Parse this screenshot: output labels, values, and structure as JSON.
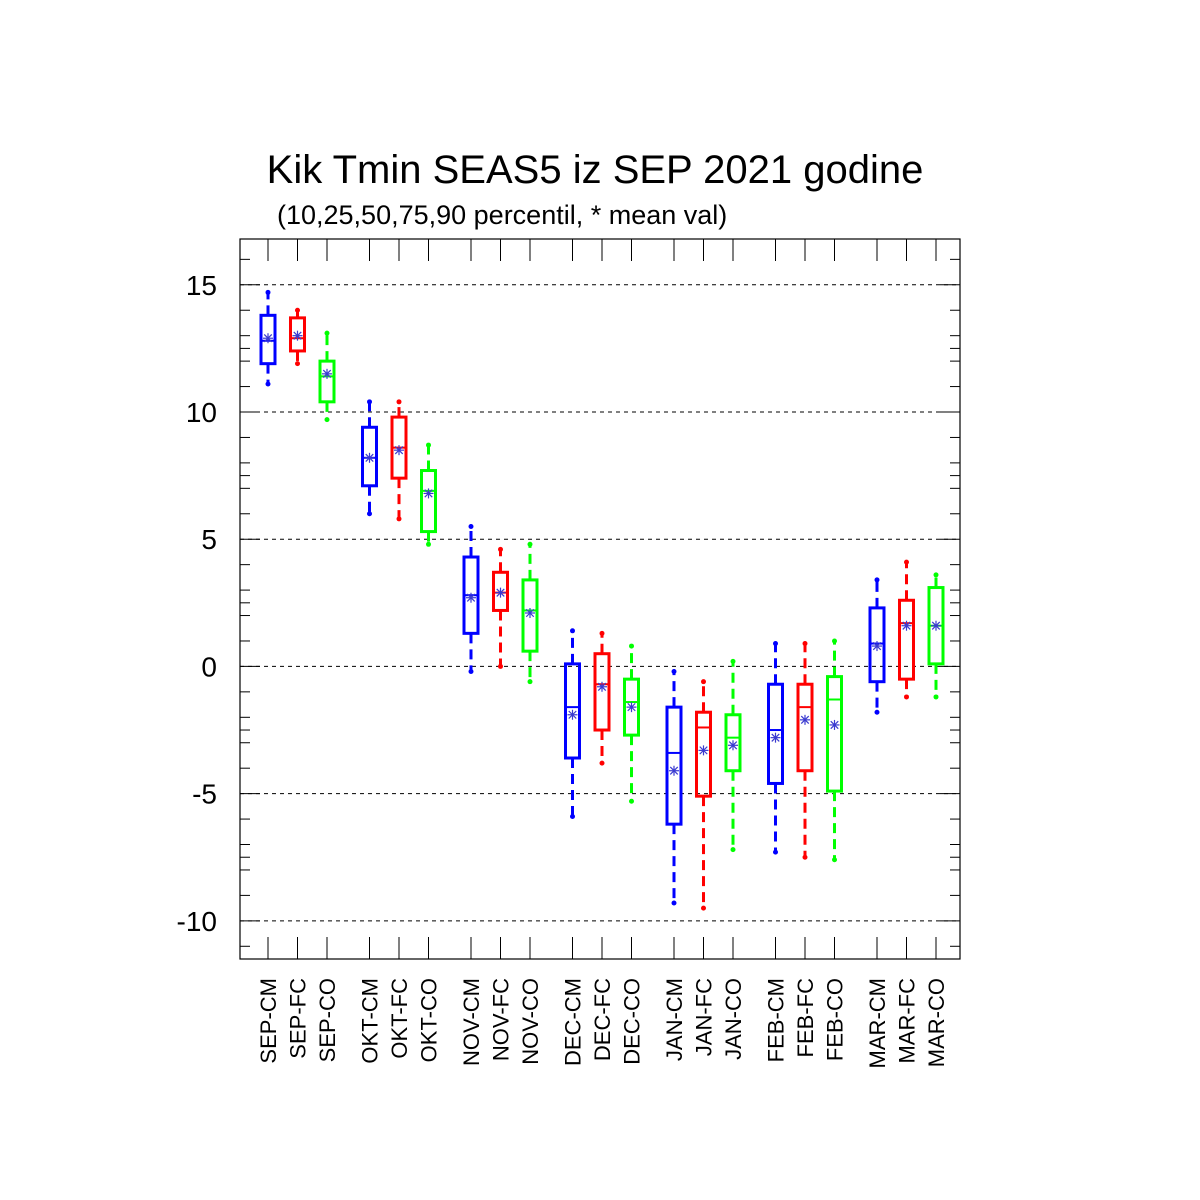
{
  "chart_data": {
    "type": "box",
    "title": "Kik Tmin SEAS5 iz SEP 2021 godine",
    "subtitle": "(10,25,50,75,90 percentil, * mean val)",
    "xlabel": "",
    "ylabel": "",
    "ylim": [
      -11.5,
      16.8
    ],
    "yticks": [
      "15",
      "10",
      "5",
      "0",
      "-5",
      "-10"
    ],
    "ytick_values": [
      15,
      10,
      5,
      0,
      -5,
      -10
    ],
    "grid": "horizontal dashed at major ticks",
    "colors": {
      "CM": "#0000ff",
      "FC": "#ff0000",
      "CO": "#00ff00",
      "mean_marker": "#3b3bd0"
    },
    "boxes": [
      {
        "label": "SEP-CM",
        "group": "CM",
        "p10": 11.1,
        "p25": 11.9,
        "p50": 12.8,
        "p75": 13.8,
        "p90": 14.7,
        "mean": 12.9
      },
      {
        "label": "SEP-FC",
        "group": "FC",
        "p10": 11.9,
        "p25": 12.4,
        "p50": 12.9,
        "p75": 13.7,
        "p90": 14.0,
        "mean": 13.0
      },
      {
        "label": "SEP-CO",
        "group": "CO",
        "p10": 9.7,
        "p25": 10.4,
        "p50": 11.4,
        "p75": 12.0,
        "p90": 13.1,
        "mean": 11.5
      },
      {
        "label": "OKT-CM",
        "group": "CM",
        "p10": 6.0,
        "p25": 7.1,
        "p50": 8.2,
        "p75": 9.4,
        "p90": 10.4,
        "mean": 8.2
      },
      {
        "label": "OKT-FC",
        "group": "FC",
        "p10": 5.8,
        "p25": 7.4,
        "p50": 8.6,
        "p75": 9.8,
        "p90": 10.4,
        "mean": 8.5
      },
      {
        "label": "OKT-CO",
        "group": "CO",
        "p10": 4.8,
        "p25": 5.3,
        "p50": 6.9,
        "p75": 7.7,
        "p90": 8.7,
        "mean": 6.8
      },
      {
        "label": "NOV-CM",
        "group": "CM",
        "p10": -0.2,
        "p25": 1.3,
        "p50": 2.8,
        "p75": 4.3,
        "p90": 5.5,
        "mean": 2.7
      },
      {
        "label": "NOV-FC",
        "group": "FC",
        "p10": 0.0,
        "p25": 2.2,
        "p50": 2.9,
        "p75": 3.7,
        "p90": 4.6,
        "mean": 2.9
      },
      {
        "label": "NOV-CO",
        "group": "CO",
        "p10": -0.6,
        "p25": 0.6,
        "p50": 2.2,
        "p75": 3.4,
        "p90": 4.8,
        "mean": 2.1
      },
      {
        "label": "DEC-CM",
        "group": "CM",
        "p10": -5.9,
        "p25": -3.6,
        "p50": -1.6,
        "p75": 0.1,
        "p90": 1.4,
        "mean": -1.9
      },
      {
        "label": "DEC-FC",
        "group": "FC",
        "p10": -3.8,
        "p25": -2.5,
        "p50": -0.7,
        "p75": 0.5,
        "p90": 1.3,
        "mean": -0.8
      },
      {
        "label": "DEC-CO",
        "group": "CO",
        "p10": -5.3,
        "p25": -2.7,
        "p50": -1.4,
        "p75": -0.5,
        "p90": 0.8,
        "mean": -1.6
      },
      {
        "label": "JAN-CM",
        "group": "CM",
        "p10": -9.3,
        "p25": -6.2,
        "p50": -3.4,
        "p75": -1.6,
        "p90": -0.2,
        "mean": -4.1
      },
      {
        "label": "JAN-FC",
        "group": "FC",
        "p10": -9.5,
        "p25": -5.1,
        "p50": -2.4,
        "p75": -1.8,
        "p90": -0.6,
        "mean": -3.3
      },
      {
        "label": "JAN-CO",
        "group": "CO",
        "p10": -7.2,
        "p25": -4.1,
        "p50": -2.8,
        "p75": -1.9,
        "p90": 0.2,
        "mean": -3.1
      },
      {
        "label": "FEB-CM",
        "group": "CM",
        "p10": -7.3,
        "p25": -4.6,
        "p50": -2.5,
        "p75": -0.7,
        "p90": 0.9,
        "mean": -2.8
      },
      {
        "label": "FEB-FC",
        "group": "FC",
        "p10": -7.5,
        "p25": -4.1,
        "p50": -1.6,
        "p75": -0.7,
        "p90": 0.9,
        "mean": -2.1
      },
      {
        "label": "FEB-CO",
        "group": "CO",
        "p10": -7.6,
        "p25": -4.9,
        "p50": -1.3,
        "p75": -0.4,
        "p90": 1.0,
        "mean": -2.3
      },
      {
        "label": "MAR-CM",
        "group": "CM",
        "p10": -1.8,
        "p25": -0.6,
        "p50": 0.9,
        "p75": 2.3,
        "p90": 3.4,
        "mean": 0.8
      },
      {
        "label": "MAR-FC",
        "group": "FC",
        "p10": -1.2,
        "p25": -0.5,
        "p50": 1.7,
        "p75": 2.6,
        "p90": 4.1,
        "mean": 1.6
      },
      {
        "label": "MAR-CO",
        "group": "CO",
        "p10": -1.2,
        "p25": 0.1,
        "p50": 1.6,
        "p75": 3.1,
        "p90": 3.6,
        "mean": 1.6
      }
    ]
  }
}
